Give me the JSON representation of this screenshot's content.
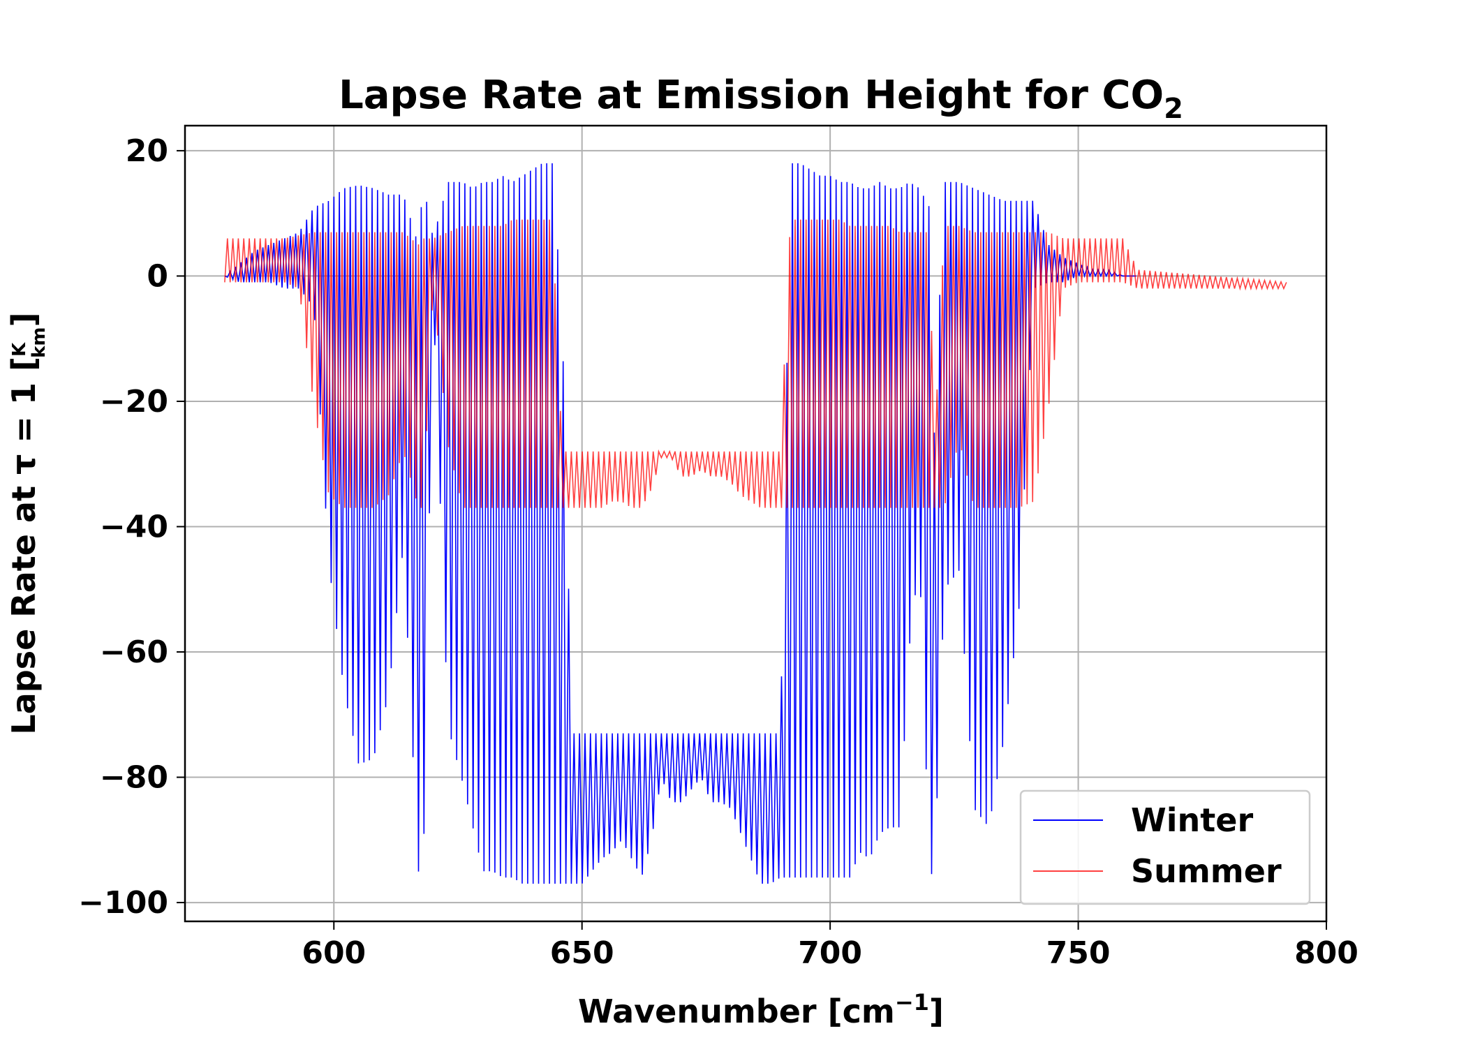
{
  "chart_data": {
    "type": "line",
    "title": "Lapse Rate at Emission Height for CO",
    "title_subscript": "2",
    "xlabel": "Wavenumber [cm",
    "xlabel_superscript": "−1",
    "xlabel_suffix": "]",
    "ylabel": "Lapse Rate at τ = 1 [",
    "ylabel_frac_num": "K",
    "ylabel_frac_den": "km",
    "ylabel_suffix": "]",
    "xlim": [
      570,
      800
    ],
    "ylim": [
      -103,
      24
    ],
    "xticks": [
      600,
      650,
      700,
      750,
      800
    ],
    "xtick_labels": [
      "600",
      "650",
      "700",
      "750",
      "800"
    ],
    "yticks": [
      20,
      0,
      -20,
      -40,
      -60,
      -80,
      -100
    ],
    "ytick_labels": [
      "20",
      "0",
      "−20",
      "−40",
      "−60",
      "−80",
      "−100"
    ],
    "grid": true,
    "legend_position": "lower-right",
    "series": [
      {
        "name": "Winter",
        "color": "#0000ff",
        "x": [
          578,
          581,
          584,
          587,
          590,
          593,
          596,
          599,
          602,
          605,
          608,
          611,
          614,
          617,
          618,
          620,
          623,
          626,
          628,
          630,
          632,
          634,
          636,
          638,
          640,
          642,
          644,
          646,
          648,
          650,
          652,
          654,
          656,
          658,
          660,
          662,
          664,
          666,
          668,
          670,
          672,
          674,
          676,
          678,
          680,
          682,
          684,
          686,
          688,
          690,
          692,
          694,
          696,
          698,
          700,
          702,
          704,
          706,
          708,
          710,
          712,
          714,
          716,
          718,
          720,
          721,
          723,
          726,
          729,
          732,
          735,
          738,
          741,
          744,
          747,
          750,
          753,
          756,
          759,
          762
        ],
        "y_high": [
          0,
          2,
          4,
          5,
          6,
          7,
          11,
          12,
          14,
          14.5,
          14,
          13,
          13,
          5,
          15,
          6,
          15,
          15,
          14,
          15,
          15,
          16,
          15,
          16,
          17,
          18,
          18,
          -7,
          -73,
          -73,
          -73,
          -73,
          -73,
          -73,
          -73,
          -73,
          -73,
          -73,
          -73,
          -73,
          -73,
          -73,
          -73,
          -73,
          -73,
          -73,
          -73,
          -73,
          -73,
          -73,
          18,
          18,
          17,
          16,
          16,
          15,
          15,
          14,
          14,
          15,
          14,
          14,
          15,
          14,
          11,
          -25,
          15,
          15,
          14,
          13,
          12,
          12,
          12,
          5,
          3,
          2,
          1,
          1,
          0,
          0
        ],
        "y_low": [
          0,
          -1,
          -1,
          -1,
          -2,
          -2,
          -5,
          -46,
          -66,
          -78,
          -77,
          -67,
          -43,
          -95,
          -96,
          -3,
          -72,
          -81,
          -88,
          -95,
          -95,
          -96,
          -96,
          -97,
          -97,
          -97,
          -97,
          -97,
          -97,
          -97,
          -95,
          -93,
          -92,
          -90,
          -93,
          -96,
          -90,
          -80,
          -84,
          -84,
          -82,
          -80,
          -84,
          -84,
          -85,
          -89,
          -93,
          -97,
          -97,
          -96,
          -96,
          -96,
          -96,
          -96,
          -96,
          -96,
          -96,
          -92,
          -93,
          -89,
          -88,
          -88,
          -59,
          -45,
          -95,
          -96,
          -50,
          -47,
          -85,
          -88,
          -74,
          -54,
          -2,
          -1,
          -1,
          0,
          0,
          0,
          0,
          0
        ]
      },
      {
        "name": "Summer",
        "color": "#ff0000",
        "x": [
          578,
          581,
          584,
          587,
          590,
          593,
          596,
          599,
          602,
          605,
          608,
          611,
          614,
          617,
          618,
          620,
          623,
          626,
          628,
          630,
          632,
          634,
          636,
          638,
          640,
          642,
          644,
          646,
          648,
          650,
          652,
          654,
          656,
          658,
          660,
          662,
          664,
          666,
          668,
          670,
          672,
          674,
          676,
          678,
          680,
          682,
          684,
          686,
          688,
          690,
          692,
          694,
          696,
          698,
          700,
          702,
          704,
          706,
          708,
          710,
          712,
          714,
          716,
          718,
          720,
          721,
          723,
          726,
          729,
          732,
          735,
          738,
          741,
          744,
          747,
          750,
          753,
          756,
          759,
          762,
          792
        ],
        "y_high": [
          6,
          6,
          6,
          6,
          6,
          6.5,
          7,
          7,
          7,
          7,
          7,
          7,
          7,
          5,
          6,
          6,
          7,
          8,
          8,
          8,
          8,
          8,
          9,
          9,
          9,
          9,
          9,
          -28,
          -28,
          -28,
          -28,
          -28,
          -28,
          -28,
          -28,
          -28,
          -28,
          -28,
          -28,
          -28,
          -28,
          -28,
          -28,
          -28,
          -28,
          -28,
          -28,
          -28,
          -28,
          -28,
          9,
          9,
          9,
          9,
          9,
          9,
          8,
          8,
          8,
          8,
          8,
          7,
          7,
          7,
          7,
          -28,
          8,
          8,
          7,
          7,
          7,
          7,
          7,
          7,
          6,
          6,
          6,
          6,
          6,
          1,
          -1
        ],
        "y_low": [
          -1,
          -1,
          -1,
          -1,
          -1,
          -2,
          -21,
          -35,
          -37,
          -37,
          -37,
          -35,
          -28,
          -37,
          -37,
          -2,
          -27,
          -37,
          -37,
          -37,
          -37,
          -37,
          -37,
          -37,
          -37,
          -37,
          -37,
          -37,
          -37,
          -37,
          -37,
          -37,
          -36,
          -36,
          -37,
          -37,
          -34,
          -29,
          -29,
          -32,
          -32,
          -31,
          -32,
          -32,
          -33,
          -35,
          -36,
          -37,
          -37,
          -37,
          -37,
          -37,
          -37,
          -37,
          -37,
          -37,
          -37,
          -37,
          -37,
          -37,
          -37,
          -37,
          -37,
          -37,
          -37,
          -37,
          -37,
          -26,
          -37,
          -37,
          -37,
          -37,
          -36,
          -21,
          -2,
          -1,
          -1,
          -1,
          -1,
          -2,
          -2
        ]
      }
    ]
  }
}
